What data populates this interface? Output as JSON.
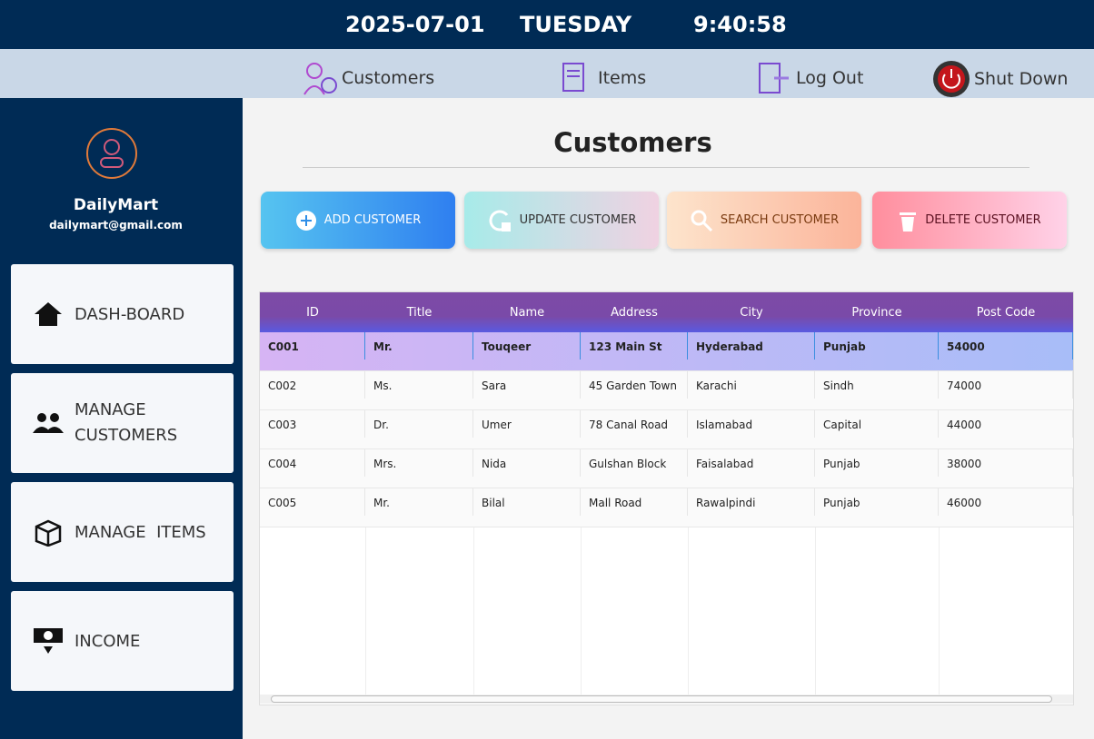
{
  "header": {
    "date": "2025-07-01",
    "day": "TUESDAY",
    "time": "9:40:58"
  },
  "nav": [
    "Customers",
    "Items",
    "Log Out",
    "Shut Down"
  ],
  "sidebar": {
    "brand": "DailyMart",
    "email": "dailymart@gmail.com",
    "menu": [
      "DASH-BOARD",
      "MANAGE CUSTOMERS",
      "MANAGE  ITEMS",
      "INCOME"
    ]
  },
  "page": {
    "title": "Customers",
    "buttons": [
      "ADD CUSTOMER",
      "UPDATE CUSTOMER",
      "SEARCH CUSTOMER",
      "DELETE CUSTOMER"
    ]
  },
  "table": {
    "columns": [
      "ID",
      "Title",
      "Name",
      "Address",
      "City",
      "Province",
      "Post Code"
    ],
    "rows": [
      [
        "C001",
        "Mr.",
        "Touqeer",
        "123 Main St",
        "Hyderabad",
        "Punjab",
        "54000"
      ],
      [
        "C002",
        "Ms.",
        "Sara",
        "45 Garden Town",
        "Karachi",
        "Sindh",
        "74000"
      ],
      [
        "C003",
        "Dr.",
        "Umer",
        "78 Canal Road",
        "Islamabad",
        "Capital",
        "44000"
      ],
      [
        "C004",
        "Mrs.",
        "Nida",
        "Gulshan Block",
        "Faisalabad",
        "Punjab",
        "38000"
      ],
      [
        "C005",
        "Mr.",
        "Bilal",
        "Mall Road",
        "Rawalpindi",
        "Punjab",
        "46000"
      ]
    ]
  }
}
